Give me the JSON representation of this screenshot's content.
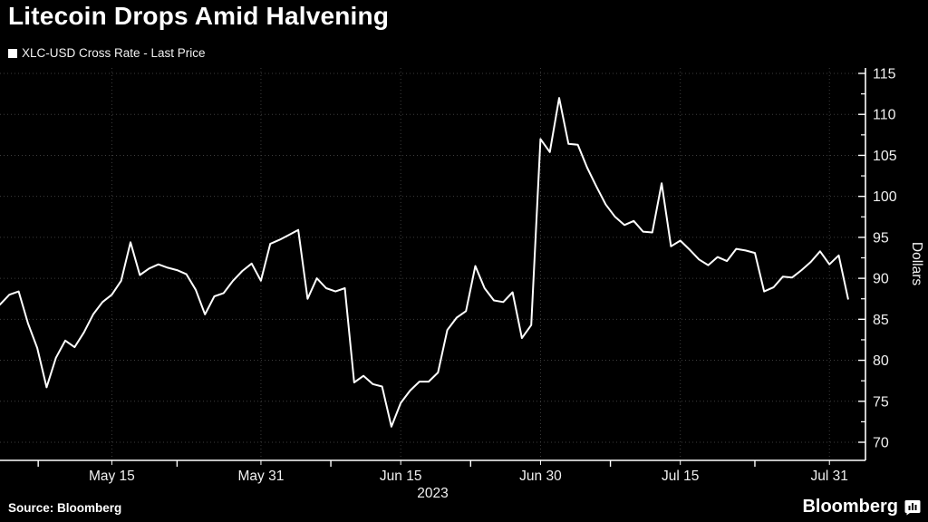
{
  "title": "Litecoin Drops Amid Halvening",
  "legend": {
    "label": "XLC-USD Cross Rate - Last Price",
    "marker_color": "#ffffff"
  },
  "source_text": "Source: Bloomberg",
  "brand": {
    "name": "Bloomberg",
    "icon": "bar-chart-speech-bubble-icon"
  },
  "colors": {
    "background": "#000000",
    "line": "#ffffff",
    "axis": "#ffffff",
    "grid": "#3d3d3d",
    "tick_text": "#f0f0f0",
    "title_text": "#ffffff"
  },
  "chart_data": {
    "type": "line",
    "title": "XLC-USD Cross Rate - Last Price",
    "xlabel": "",
    "ylabel": "Dollars",
    "x_axis_year_label": "2023",
    "ylim": [
      68,
      116
    ],
    "y_ticks": [
      70,
      75,
      80,
      85,
      90,
      95,
      100,
      105,
      110,
      115
    ],
    "grid": true,
    "legend_position": "top-left",
    "x_tick_labels": [
      {
        "label": "May 15",
        "index": 12
      },
      {
        "label": "May 31",
        "index": 28
      },
      {
        "label": "Jun 15",
        "index": 43
      },
      {
        "label": "Jun 30",
        "index": 58
      },
      {
        "label": "Jul 15",
        "index": 73
      },
      {
        "label": "Jul 31",
        "index": 89
      }
    ],
    "x_minor_tick_indices": [
      4.1,
      19,
      35.5,
      50.5,
      65.5,
      81
    ],
    "dates": [
      "May 3",
      "May 4",
      "May 5",
      "May 6",
      "May 7",
      "May 8",
      "May 9",
      "May 10",
      "May 11",
      "May 12",
      "May 13",
      "May 14",
      "May 15",
      "May 16",
      "May 17",
      "May 18",
      "May 19",
      "May 20",
      "May 21",
      "May 22",
      "May 23",
      "May 24",
      "May 25",
      "May 26",
      "May 27",
      "May 28",
      "May 29",
      "May 30",
      "May 31",
      "Jun 1",
      "Jun 2",
      "Jun 3",
      "Jun 4",
      "Jun 5",
      "Jun 6",
      "Jun 7",
      "Jun 8",
      "Jun 9",
      "Jun 10",
      "Jun 11",
      "Jun 12",
      "Jun 13",
      "Jun 14",
      "Jun 15",
      "Jun 16",
      "Jun 17",
      "Jun 18",
      "Jun 19",
      "Jun 20",
      "Jun 21",
      "Jun 22",
      "Jun 23",
      "Jun 24",
      "Jun 25",
      "Jun 26",
      "Jun 27",
      "Jun 28",
      "Jun 29",
      "Jun 30",
      "Jul 1",
      "Jul 2",
      "Jul 3",
      "Jul 4",
      "Jul 5",
      "Jul 6",
      "Jul 7",
      "Jul 8",
      "Jul 9",
      "Jul 10",
      "Jul 11",
      "Jul 12",
      "Jul 13",
      "Jul 14",
      "Jul 15",
      "Jul 16",
      "Jul 17",
      "Jul 18",
      "Jul 19",
      "Jul 20",
      "Jul 21",
      "Jul 22",
      "Jul 23",
      "Jul 24",
      "Jul 25",
      "Jul 26",
      "Jul 27",
      "Jul 28",
      "Jul 29",
      "Jul 30",
      "Jul 31",
      "Aug 1",
      "Aug 2"
    ],
    "values": [
      86.8,
      88.0,
      88.4,
      84.5,
      81.5,
      76.7,
      80.3,
      82.4,
      81.6,
      83.4,
      85.6,
      87.1,
      88.0,
      89.7,
      94.4,
      90.4,
      91.2,
      91.7,
      91.3,
      91.0,
      90.5,
      88.6,
      85.6,
      87.8,
      88.2,
      89.7,
      90.9,
      91.8,
      89.7,
      94.2,
      94.7,
      95.3,
      95.9,
      87.5,
      90.0,
      88.8,
      88.4,
      88.8,
      77.3,
      78.1,
      77.1,
      76.8,
      71.9,
      74.8,
      76.3,
      77.4,
      77.4,
      78.5,
      83.7,
      85.2,
      86.0,
      91.5,
      88.8,
      87.3,
      87.1,
      88.3,
      82.7,
      84.3,
      107.0,
      105.4,
      112.0,
      106.4,
      106.3,
      103.5,
      101.2,
      99.0,
      97.5,
      96.5,
      97.0,
      95.7,
      95.6,
      101.6,
      93.9,
      94.6,
      93.5,
      92.3,
      91.6,
      92.6,
      92.1,
      93.6,
      93.4,
      93.1,
      88.4,
      88.9,
      90.2,
      90.1,
      91.0,
      92.0,
      93.3,
      91.7,
      92.8,
      87.5
    ]
  }
}
